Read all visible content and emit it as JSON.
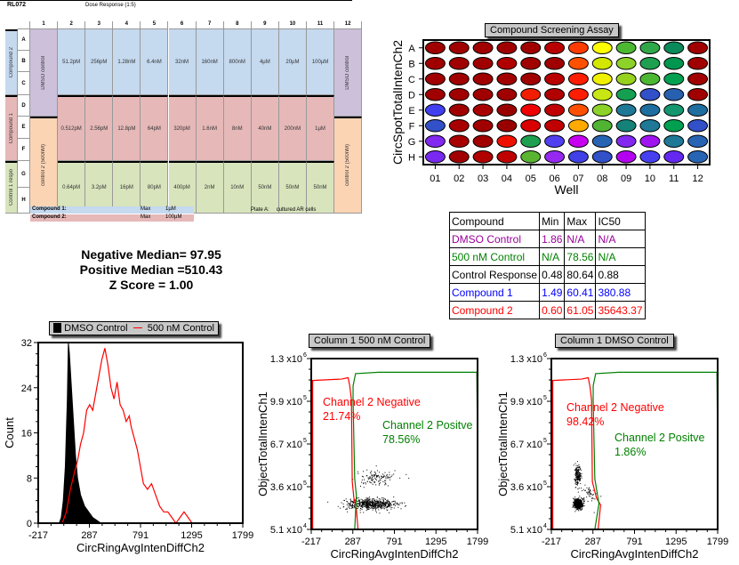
{
  "plate_layout": {
    "plate_id": "RL072",
    "subtitle": "Dose Response (1:5)",
    "columns": [
      "1",
      "2",
      "3",
      "4",
      "5",
      "6",
      "7",
      "8",
      "9",
      "10",
      "11",
      "12"
    ],
    "rows": [
      "A",
      "B",
      "C",
      "D",
      "E",
      "F",
      "G",
      "H"
    ],
    "group_labels": {
      "compound2": "Compound 2",
      "compound1": "Compound 1",
      "control1": "Control 1 respo"
    },
    "col1_top": "DMSO control",
    "col1_bottom": "control 2 (500nM)",
    "col12_top": "DMSO control",
    "col12_bottom": "control 2 (500nM)",
    "compound2_doses": [
      "51.2pM",
      "256pM",
      "1.28nM",
      "6.4nM",
      "32nM",
      "160nM",
      "800nM",
      "4µM",
      "20µM",
      "100µM"
    ],
    "compound1_doses": [
      "0.512pM",
      "2.56pM",
      "12.8pM",
      "64pM",
      "320pM",
      "1.6nM",
      "8nM",
      "40nM",
      "200nM",
      "1µM"
    ],
    "control_doses": [
      "0.64pM",
      "3.2pM",
      "16pM",
      "80pM",
      "400pM",
      "2nM",
      "10nM",
      "50nM",
      "50nM",
      "50nM"
    ],
    "footer": {
      "compound1_label": "Compound 1:",
      "compound1_max_label": "Max",
      "compound1_max": "1µM",
      "compound2_label": "Compound 2:",
      "compound2_max_label": "Max",
      "compound2_max": "100µM",
      "plate_label": "Plate A:",
      "plate_desc": "cultured AR cells"
    }
  },
  "heatmap": {
    "title": "Compound Screening Assay",
    "ylabel": "CircSpotTotalIntenCh2",
    "xlabel": "Well",
    "rows": [
      "A",
      "B",
      "C",
      "D",
      "E",
      "F",
      "G",
      "H"
    ],
    "cols": [
      "01",
      "02",
      "03",
      "04",
      "05",
      "06",
      "07",
      "08",
      "09",
      "10",
      "11",
      "12"
    ],
    "colors": [
      [
        "#a00000",
        "#a00000",
        "#a00000",
        "#a00000",
        "#a00000",
        "#b80000",
        "#ff3c00",
        "#ffff00",
        "#4cb832",
        "#30a84a",
        "#0a8a5a",
        "#a00000"
      ],
      [
        "#a00000",
        "#a00000",
        "#a00000",
        "#b00000",
        "#a00000",
        "#a00000",
        "#ff5000",
        "#d2e600",
        "#8cd228",
        "#1ea050",
        "#009650",
        "#a00000"
      ],
      [
        "#a00000",
        "#a00000",
        "#a00000",
        "#a00000",
        "#a00000",
        "#b80000",
        "#ff1e00",
        "#f0f000",
        "#96d21e",
        "#4cb832",
        "#00a050",
        "#a00000"
      ],
      [
        "#a00000",
        "#a00000",
        "#a00000",
        "#a00000",
        "#f01e00",
        "#b00000",
        "#ff1e00",
        "#c8e614",
        "#14a050",
        "#3250c8",
        "#2860b0",
        "#a00000"
      ],
      [
        "#4040f0",
        "#a00000",
        "#a80000",
        "#980000",
        "#f00000",
        "#c00000",
        "#ff5000",
        "#8cd228",
        "#1e7896",
        "#1e6ea0",
        "#14966e",
        "#1e6ea0"
      ],
      [
        "#3250c8",
        "#a80000",
        "#a00000",
        "#980000",
        "#d80000",
        "#c00000",
        "#ffaa00",
        "#50b432",
        "#148278",
        "#1e7896",
        "#00a050",
        "#3250c8"
      ],
      [
        "#8228f0",
        "#a80000",
        "#a00000",
        "#f01000",
        "#1ea050",
        "#5040f0",
        "#c800f0",
        "#2864b4",
        "#8228f0",
        "#a014f0",
        "#1e7896",
        "#2864b4"
      ],
      [
        "#7828f0",
        "#a00000",
        "#b00000",
        "#c00000",
        "#5ab432",
        "#9628f0",
        "#4040e6",
        "#3250c8",
        "#b400f0",
        "#4640f0",
        "#6428f0",
        "#2864b4"
      ]
    ]
  },
  "stats": {
    "negative_median": "Negative Median= 97.95",
    "positive_median": "Positive Median =510.43",
    "z_score": "Z Score = 1.00"
  },
  "summary_table": {
    "headers": [
      "Compound",
      "Min",
      "Max",
      "IC50"
    ],
    "rows": [
      {
        "name": "DMSO Control",
        "min": "1.86",
        "max": "N/A",
        "ic50": "N/A",
        "color": "#990099"
      },
      {
        "name": "500 nM Control",
        "min": "N/A",
        "max": "78.56",
        "ic50": "N/A",
        "color": "#008000"
      },
      {
        "name": "Control Response",
        "min": "0.48",
        "max": "80.64",
        "ic50": "0.88",
        "color": "#000000"
      },
      {
        "name": "Compound 1",
        "min": "1.49",
        "max": "60.41",
        "ic50": "380.88",
        "color": "#0000ff"
      },
      {
        "name": "Compound 2",
        "min": "0.60",
        "max": "61.05",
        "ic50": "35643.37",
        "color": "#ff0000"
      }
    ]
  },
  "chart_data": [
    {
      "type": "area",
      "title": "",
      "legend": [
        {
          "name": "DMSO Control",
          "style": "filled-black"
        },
        {
          "name": "500 nM Control",
          "style": "line-red"
        }
      ],
      "legend_position": "top",
      "xlabel": "CircRingAvgIntenDiffCh2",
      "ylabel": "Count",
      "xlim": [
        -217,
        1799
      ],
      "ylim": [
        0,
        32
      ],
      "xticks": [
        "-217",
        "287",
        "791",
        "1295",
        "1799"
      ],
      "yticks": [
        "0",
        "8",
        "16",
        "24",
        "32"
      ],
      "series": [
        {
          "name": "DMSO Control",
          "color": "#000000",
          "x": [
            -10,
            10,
            30,
            50,
            70,
            80,
            90,
            110,
            130,
            150,
            170,
            200,
            240,
            280,
            320,
            360,
            400
          ],
          "y": [
            0,
            1,
            4,
            10,
            22,
            32,
            30,
            24,
            18,
            12,
            8,
            5,
            3,
            2,
            1,
            0.5,
            0
          ]
        },
        {
          "name": "500 nM Control",
          "color": "#ff0000",
          "x": [
            20,
            60,
            100,
            140,
            170,
            200,
            230,
            260,
            290,
            320,
            350,
            380,
            410,
            440,
            470,
            500,
            530,
            560,
            590,
            620,
            650,
            680,
            700,
            730,
            760,
            790,
            820,
            860,
            900,
            940,
            980,
            1020,
            1060,
            1100,
            1140,
            1180,
            1220,
            1260,
            1300,
            1340,
            1380,
            1420
          ],
          "y": [
            0,
            2,
            6,
            9,
            11,
            14,
            16,
            20,
            21,
            20,
            23,
            26,
            29,
            31,
            28,
            24,
            22,
            25,
            21,
            20,
            18,
            19,
            17,
            15,
            13,
            10,
            7,
            6,
            7,
            5,
            3,
            2,
            2,
            1,
            0,
            1,
            2,
            1,
            0,
            0,
            0,
            0
          ]
        }
      ]
    },
    {
      "type": "scatter",
      "title": "Column 1 500 nM Control",
      "xlabel": "CircRingAvgIntenDiffCh2",
      "ylabel": "ObjectTotalIntenCh1",
      "xlim": [
        -217,
        1799
      ],
      "ylim": [
        51000,
        1300000
      ],
      "xticks": [
        "-217",
        "287",
        "791",
        "1295",
        "1799"
      ],
      "yticks": [
        "5.1 x10^4",
        "3.6 x10^5",
        "6.7 x10^5",
        "9.9 x10^5",
        "1.3 x10^6"
      ],
      "annotations": [
        {
          "text": "Channel 2 Negative",
          "color": "#ff0000"
        },
        {
          "text": "21.74%",
          "color": "#ff0000"
        },
        {
          "text": "Channel 2 Positve",
          "color": "#008000"
        },
        {
          "text": "78.56%",
          "color": "#008000"
        }
      ],
      "clusters": [
        {
          "cx": 500,
          "cy": 240000,
          "sx": 300,
          "sy": 40000,
          "n": 600
        },
        {
          "cx": 560,
          "cy": 430000,
          "sx": 250,
          "sy": 60000,
          "n": 120
        }
      ]
    },
    {
      "type": "scatter",
      "title": "Column 1 DMSO Control",
      "xlabel": "CircRingAvgIntenDiffCh2",
      "ylabel": "ObjectTotalIntenCh1",
      "xlim": [
        -217,
        1799
      ],
      "ylim": [
        51000,
        1300000
      ],
      "xticks": [
        "-217",
        "287",
        "791",
        "1295",
        "1799"
      ],
      "yticks": [
        "5.1 x10^4",
        "3.6 x10^5",
        "6.7 x10^5",
        "9.9 x10^5",
        "1.3 x10^6"
      ],
      "annotations": [
        {
          "text": "Channel 2 Negative",
          "color": "#ff0000"
        },
        {
          "text": "98.42%",
          "color": "#ff0000"
        },
        {
          "text": "Channel 2 Positve",
          "color": "#008000"
        },
        {
          "text": "1.86%",
          "color": "#008000"
        }
      ],
      "clusters": [
        {
          "cx": 100,
          "cy": 240000,
          "sx": 50,
          "sy": 35000,
          "n": 650
        },
        {
          "cx": 100,
          "cy": 450000,
          "sx": 40,
          "sy": 70000,
          "n": 180
        },
        {
          "cx": 200,
          "cy": 300000,
          "sx": 120,
          "sy": 80000,
          "n": 60
        }
      ]
    }
  ]
}
